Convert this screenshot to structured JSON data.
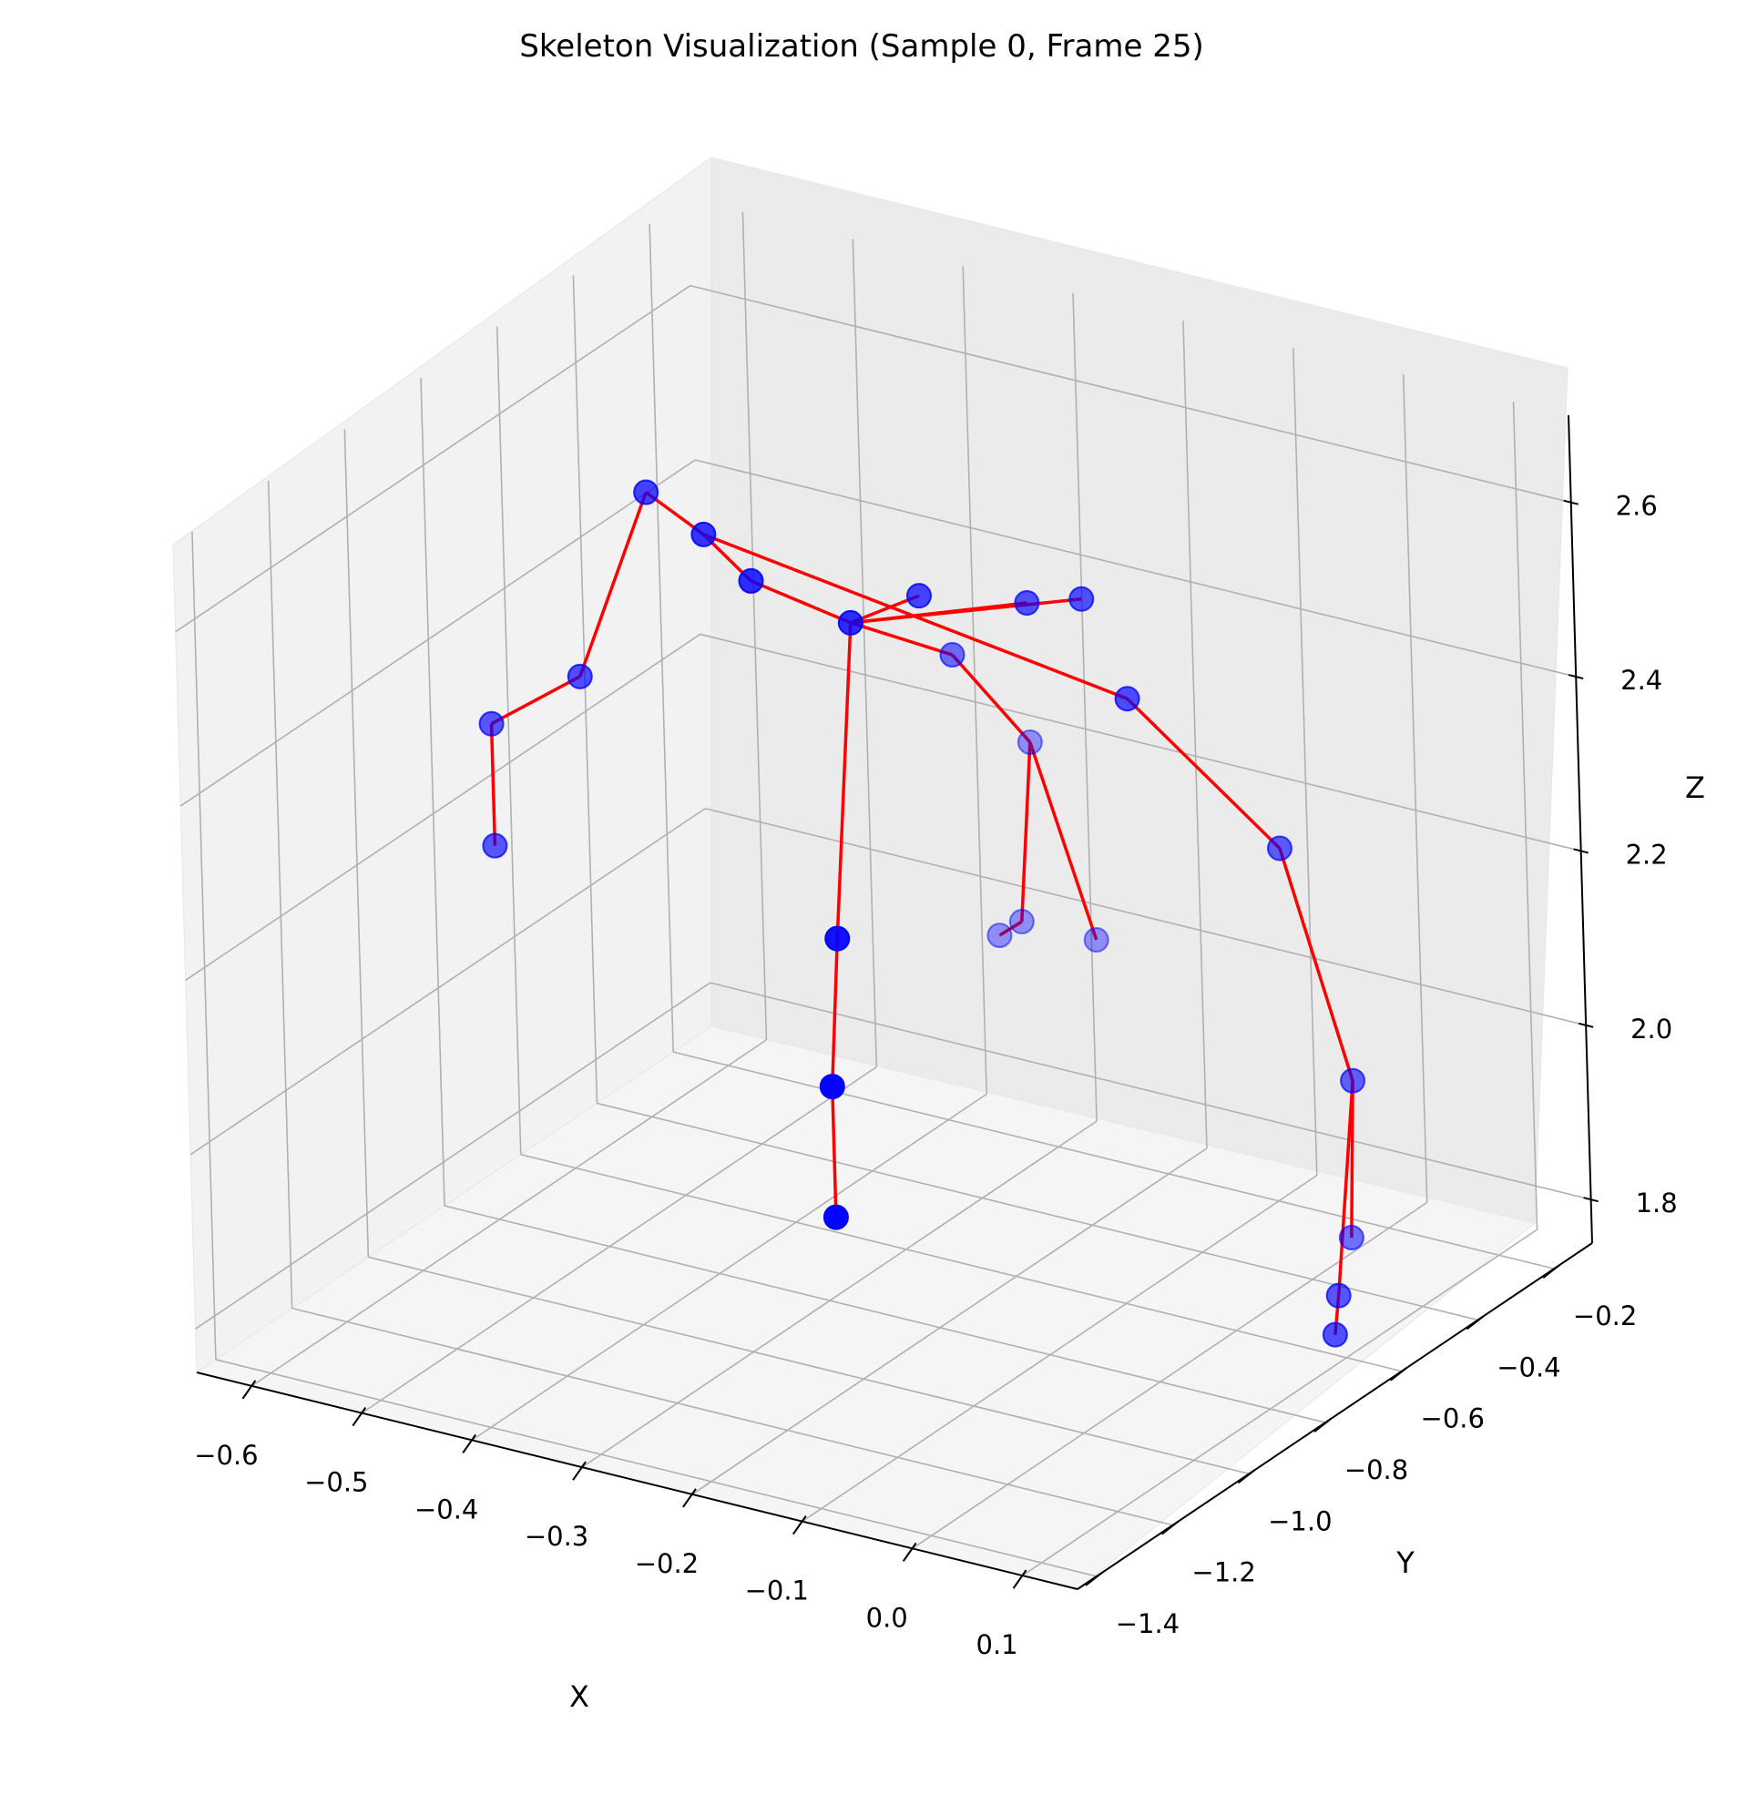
{
  "chart_data": {
    "type": "scatter",
    "projection": "3d",
    "title": "Skeleton Visualization (Sample 0, Frame 25)",
    "xlabel": "X",
    "ylabel": "Y",
    "zlabel": "Z",
    "xlim": [
      -0.65,
      0.15
    ],
    "ylim": [
      -1.45,
      -0.1
    ],
    "zlim": [
      1.75,
      2.7
    ],
    "x_ticks": [
      "−0.6",
      "−0.5",
      "−0.4",
      "−0.3",
      "−0.2",
      "−0.1",
      "0.0",
      "0.1"
    ],
    "y_ticks": [
      "−1.4",
      "−1.2",
      "−1.0",
      "−0.8",
      "−0.6",
      "−0.4",
      "−0.2"
    ],
    "z_ticks": [
      "1.8",
      "2.0",
      "2.2",
      "2.4",
      "2.6"
    ],
    "grid": true,
    "marker_color": "#0000ff",
    "bone_color": "#ff0000",
    "joints": [
      {
        "id": 0,
        "x": -0.21,
        "y": -0.95,
        "z": 2.6
      },
      {
        "id": 1,
        "x": -0.3,
        "y": -0.95,
        "z": 2.62
      },
      {
        "id": 2,
        "x": -0.36,
        "y": -0.9,
        "z": 2.64
      },
      {
        "id": 3,
        "x": -0.44,
        "y": -0.82,
        "z": 2.64
      },
      {
        "id": 4,
        "x": -0.53,
        "y": -0.75,
        "z": 2.38
      },
      {
        "id": 5,
        "x": -0.63,
        "y": -0.7,
        "z": 2.28
      },
      {
        "id": 6,
        "x": -0.63,
        "y": -0.7,
        "z": 2.14
      },
      {
        "id": 7,
        "x": -0.17,
        "y": -1.12,
        "z": 2.3
      },
      {
        "id": 8,
        "x": -0.15,
        "y": -1.2,
        "z": 2.16
      },
      {
        "id": 9,
        "x": -0.15,
        "y": -1.2,
        "z": 2.01
      },
      {
        "id": 10,
        "x": -0.2,
        "y": -0.8,
        "z": 2.59
      },
      {
        "id": 11,
        "x": -0.13,
        "y": -0.72,
        "z": 2.58
      },
      {
        "id": 12,
        "x": -0.08,
        "y": -0.72,
        "z": 2.6
      },
      {
        "id": 13,
        "x": -0.26,
        "y": -0.55,
        "z": 2.43
      },
      {
        "id": 14,
        "x": -0.28,
        "y": -0.3,
        "z": 2.25
      },
      {
        "id": 15,
        "x": -0.31,
        "y": -0.25,
        "z": 2.02
      },
      {
        "id": 16,
        "x": -0.32,
        "y": -0.28,
        "z": 2.01
      },
      {
        "id": 17,
        "x": -0.26,
        "y": -0.2,
        "z": 2.0
      },
      {
        "id": 18,
        "x": -0.03,
        "y": -0.75,
        "z": 2.51
      },
      {
        "id": 19,
        "x": 0.07,
        "y": -0.65,
        "z": 2.34
      },
      {
        "id": 20,
        "x": 0.12,
        "y": -0.62,
        "z": 2.08
      },
      {
        "id": 21,
        "x": 0.09,
        "y": -0.55,
        "z": 1.87
      },
      {
        "id": 22,
        "x": 0.13,
        "y": -0.7,
        "z": 1.86
      },
      {
        "id": 23,
        "x": 0.14,
        "y": -0.74,
        "z": 1.83
      }
    ],
    "bones": [
      [
        0,
        1
      ],
      [
        1,
        2
      ],
      [
        2,
        3
      ],
      [
        3,
        4
      ],
      [
        4,
        5
      ],
      [
        5,
        6
      ],
      [
        0,
        7
      ],
      [
        7,
        8
      ],
      [
        8,
        9
      ],
      [
        0,
        10
      ],
      [
        0,
        11
      ],
      [
        0,
        12
      ],
      [
        2,
        18
      ],
      [
        18,
        19
      ],
      [
        19,
        20
      ],
      [
        20,
        21
      ],
      [
        20,
        22
      ],
      [
        22,
        23
      ],
      [
        0,
        13
      ],
      [
        13,
        14
      ],
      [
        14,
        15
      ],
      [
        15,
        16
      ],
      [
        14,
        17
      ]
    ]
  }
}
